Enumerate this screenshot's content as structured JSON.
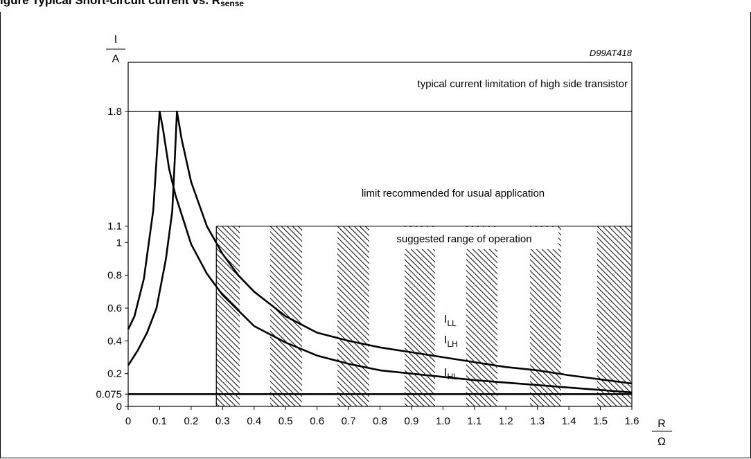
{
  "heading": {
    "prefix": "igure",
    "main": "Typical Short-circuit current vs. R",
    "subscript": "sense"
  },
  "chart_data": {
    "type": "line",
    "code": "D99AT418",
    "y_unit_top": "I",
    "y_unit_bottom": "A",
    "x_unit_top": "R",
    "x_unit_bottom": "Ω",
    "xlim": [
      0,
      1.6
    ],
    "ylim": [
      0,
      2.1
    ],
    "x_ticks": [
      "0",
      "0.1",
      "0.2",
      "0.3",
      "0.4",
      "0.5",
      "0.6",
      "0.7",
      "0.8",
      "0.9",
      "1.0",
      "1.1",
      "1.2",
      "1.3",
      "1.4",
      "1.5",
      "1.6"
    ],
    "y_ticks": [
      "0",
      "0.075",
      "0.2",
      "0.4",
      "0.6",
      "0.8",
      "1",
      "1.1",
      "1.8"
    ],
    "annotations": {
      "current_limit": "typical current limitation of high side transistor",
      "recommended_limit": "limit recommended for usual application",
      "range_label": "suggested range of operation"
    },
    "recommended_limit_value": 1.1,
    "current_limit_value": 1.8,
    "suggested_range_start": 0.28,
    "series": [
      {
        "label_main": "I",
        "label_sub": "LL",
        "x": [
          0,
          0.02,
          0.05,
          0.08,
          0.1,
          0.11,
          0.13,
          0.15,
          0.2,
          0.25,
          0.3,
          0.4,
          0.5,
          0.6,
          0.7,
          0.8,
          0.9,
          1.0,
          1.1,
          1.2,
          1.3,
          1.4,
          1.5,
          1.6
        ],
        "y": [
          0.47,
          0.55,
          0.78,
          1.2,
          1.8,
          1.7,
          1.45,
          1.29,
          0.99,
          0.81,
          0.68,
          0.49,
          0.39,
          0.31,
          0.26,
          0.22,
          0.2,
          0.18,
          0.16,
          0.145,
          0.13,
          0.115,
          0.1,
          0.085
        ]
      },
      {
        "label_main": "I",
        "label_sub": "LH",
        "x": [
          0,
          0.03,
          0.06,
          0.09,
          0.12,
          0.14,
          0.148,
          0.155,
          0.17,
          0.2,
          0.25,
          0.3,
          0.35,
          0.4,
          0.5,
          0.6,
          0.7,
          0.8,
          0.9,
          1.0,
          1.1,
          1.2,
          1.3,
          1.4,
          1.5,
          1.6
        ],
        "y": [
          0.25,
          0.34,
          0.45,
          0.6,
          0.9,
          1.19,
          1.5,
          1.8,
          1.63,
          1.37,
          1.1,
          0.93,
          0.8,
          0.7,
          0.55,
          0.45,
          0.4,
          0.36,
          0.33,
          0.3,
          0.27,
          0.24,
          0.22,
          0.19,
          0.165,
          0.14
        ]
      },
      {
        "label_main": "I",
        "label_sub": "HL",
        "x": [
          0,
          1.6
        ],
        "y": [
          0.075,
          0.075
        ]
      }
    ]
  }
}
